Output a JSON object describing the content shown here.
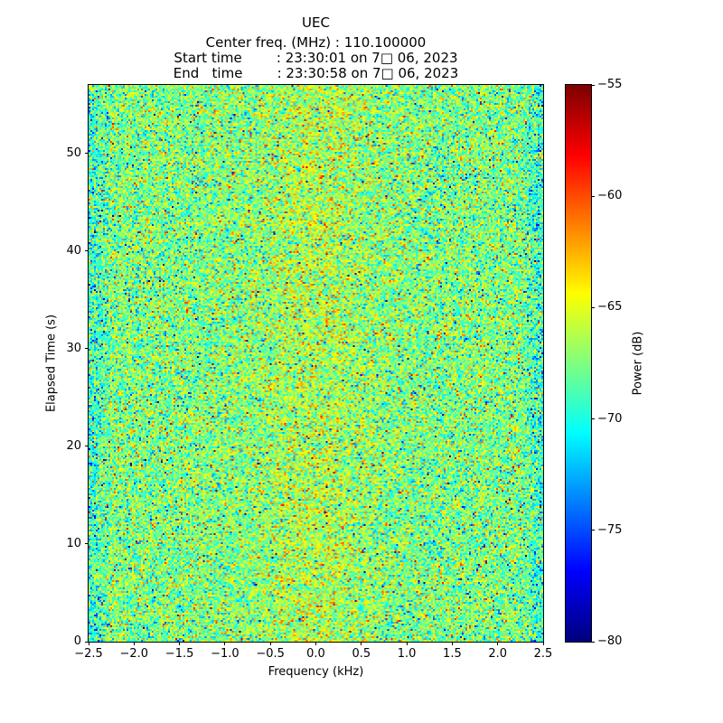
{
  "figure": {
    "subtitle_lines": [
      "Center freq. (MHz) : 110.100000",
      "Start time        : 23:30:01 on 7□ 06, 2023",
      "End   time        : 23:30:58 on 7□ 06, 2023"
    ]
  },
  "chart_data": {
    "type": "heatmap",
    "title": "UEC",
    "center_freq_mhz": "110.100000",
    "start_time": "23:30:01 on 7□ 06, 2023",
    "end_time": "23:30:58 on 7□ 06, 2023",
    "xlabel": "Frequency (kHz)",
    "ylabel": "Elapsed Time (s)",
    "xlim": [
      -2.5,
      2.5
    ],
    "ylim": [
      0,
      57
    ],
    "x_ticks": [
      -2.5,
      -2.0,
      -1.5,
      -1.0,
      -0.5,
      0.0,
      0.5,
      1.0,
      1.5,
      2.0,
      2.5
    ],
    "x_tick_labels": [
      "−2.5",
      "−2.0",
      "−1.5",
      "−1.0",
      "−0.5",
      "0.0",
      "0.5",
      "1.0",
      "1.5",
      "2.0",
      "2.5"
    ],
    "y_ticks": [
      0,
      10,
      20,
      30,
      40,
      50
    ],
    "y_tick_labels": [
      "0",
      "10",
      "20",
      "30",
      "40",
      "50"
    ],
    "colorbar": {
      "label": "Power (dB)",
      "min": -80,
      "max": -55,
      "ticks": [
        -55,
        -60,
        -65,
        -70,
        -75,
        -80
      ],
      "tick_labels": [
        "−55",
        "−60",
        "−65",
        "−70",
        "−75",
        "−80"
      ],
      "colormap": "jet"
    },
    "noise": {
      "mean_db": -67.5,
      "std_db": 2.8,
      "seed": 12345,
      "cols": 251,
      "rows": 308,
      "outlier_prob": 0.012,
      "center_boost_db": 1.3,
      "edge_rolloff_db": 2.2
    }
  }
}
